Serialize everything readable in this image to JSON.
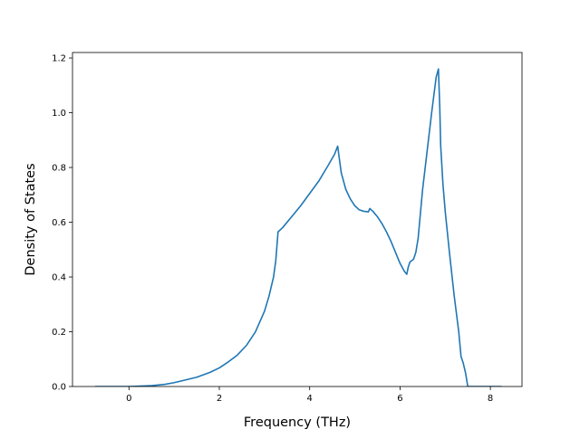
{
  "chart_data": {
    "type": "line",
    "title": "",
    "xlabel": "Frequency (THz)",
    "ylabel": "Density of States",
    "xlim": [
      -1.25,
      8.7
    ],
    "ylim": [
      0.0,
      1.22
    ],
    "xticks": [
      0,
      2,
      4,
      6,
      8
    ],
    "xtick_labels": [
      "0",
      "2",
      "4",
      "6",
      "8"
    ],
    "yticks": [
      0.0,
      0.2,
      0.4,
      0.6,
      0.8,
      1.0,
      1.2
    ],
    "ytick_labels": [
      "0.0",
      "0.2",
      "0.4",
      "0.6",
      "0.8",
      "1.0",
      "1.2"
    ],
    "grid": false,
    "legend": "none",
    "series_color": "#1f77b4",
    "series": [
      {
        "x": [
          -0.75,
          0.0,
          0.5,
          0.8,
          1.0,
          1.2,
          1.5,
          1.8,
          2.0,
          2.2,
          2.4,
          2.6,
          2.8,
          3.0,
          3.1,
          3.2,
          3.25,
          3.3,
          3.4,
          3.6,
          3.8,
          4.0,
          4.2,
          4.4,
          4.55,
          4.62,
          4.65,
          4.7,
          4.8,
          4.9,
          5.0,
          5.1,
          5.2,
          5.3,
          5.33,
          5.4,
          5.5,
          5.6,
          5.7,
          5.8,
          5.9,
          6.0,
          6.1,
          6.15,
          6.18,
          6.22,
          6.3,
          6.35,
          6.4,
          6.45,
          6.5,
          6.6,
          6.7,
          6.8,
          6.85,
          6.88,
          6.9,
          6.95,
          7.0,
          7.1,
          7.2,
          7.3,
          7.35,
          7.4,
          7.45,
          7.5,
          7.6,
          8.0,
          8.25
        ],
        "y": [
          0.0,
          0.0,
          0.003,
          0.008,
          0.014,
          0.022,
          0.034,
          0.052,
          0.068,
          0.09,
          0.115,
          0.15,
          0.2,
          0.275,
          0.33,
          0.4,
          0.46,
          0.565,
          0.58,
          0.62,
          0.66,
          0.705,
          0.75,
          0.805,
          0.848,
          0.878,
          0.84,
          0.78,
          0.72,
          0.685,
          0.66,
          0.645,
          0.64,
          0.638,
          0.65,
          0.64,
          0.62,
          0.595,
          0.565,
          0.53,
          0.49,
          0.45,
          0.42,
          0.41,
          0.435,
          0.455,
          0.465,
          0.49,
          0.54,
          0.63,
          0.72,
          0.86,
          1.0,
          1.13,
          1.16,
          1.02,
          0.88,
          0.74,
          0.64,
          0.48,
          0.33,
          0.2,
          0.11,
          0.085,
          0.05,
          0.0,
          0.0,
          0.0,
          0.0
        ]
      }
    ]
  }
}
